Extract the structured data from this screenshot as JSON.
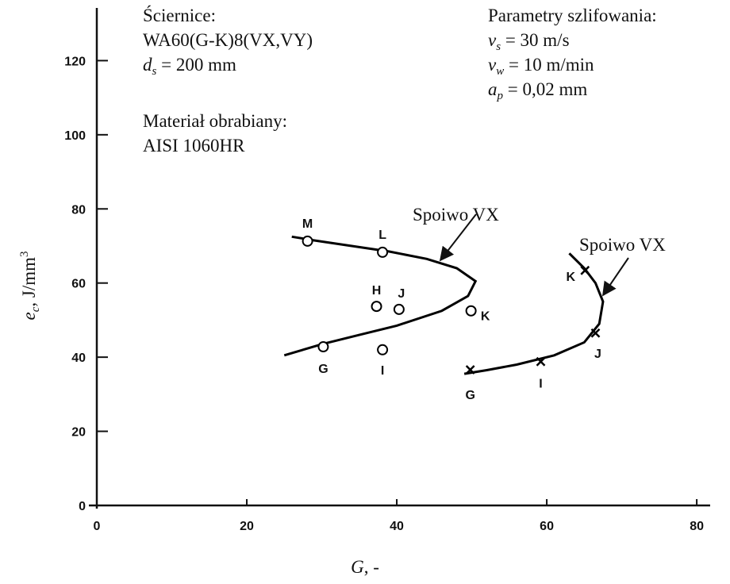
{
  "chart_data": {
    "type": "scatter",
    "xlabel": [
      {
        "t": "G",
        "style": "italic"
      },
      {
        "t": ", -",
        "style": "normal"
      }
    ],
    "ylabel": [
      {
        "t": "e",
        "style": "italic"
      },
      {
        "t": "c",
        "style": "sub"
      },
      {
        "t": ", J/mm",
        "style": "normal"
      },
      {
        "t": "3",
        "style": "sup"
      }
    ],
    "xlim": [
      0,
      82
    ],
    "ylim": [
      0,
      134
    ],
    "xticks": [
      0,
      20,
      40,
      60,
      80
    ],
    "yticks": [
      0,
      20,
      40,
      60,
      80,
      100,
      120
    ],
    "annotations_left": [
      [
        {
          "t": "Ściernice:",
          "style": "normal"
        }
      ],
      [
        {
          "t": "WA60(G-K)8(VX,VY)",
          "style": "normal"
        }
      ],
      [
        {
          "t": "d",
          "style": "italic"
        },
        {
          "t": "s",
          "style": "sub"
        },
        {
          "t": " = 200 mm",
          "style": "normal"
        }
      ],
      [
        {
          "t": "Materiał obrabiany:",
          "style": "normal"
        }
      ],
      [
        {
          "t": "AISI 1060HR",
          "style": "normal"
        }
      ]
    ],
    "annotations_right": [
      [
        {
          "t": "Parametry szlifowania:",
          "style": "normal"
        }
      ],
      [
        {
          "t": "v",
          "style": "italic"
        },
        {
          "t": "s",
          "style": "sub"
        },
        {
          "t": " = 30 m/s",
          "style": "normal"
        }
      ],
      [
        {
          "t": "v",
          "style": "italic"
        },
        {
          "t": "w",
          "style": "sub"
        },
        {
          "t": " = 10 m/min",
          "style": "normal"
        }
      ],
      [
        {
          "t": "a",
          "style": "italic"
        },
        {
          "t": "p",
          "style": "sub"
        },
        {
          "t": " = 0,02 mm",
          "style": "normal"
        }
      ]
    ],
    "series": [
      {
        "name": "Spoiwo VX",
        "marker": "circle",
        "color": "#000000",
        "labels": [
          "M",
          "L",
          "K",
          "H",
          "J",
          "I",
          "G"
        ],
        "x": [
          28.1,
          38.1,
          49.9,
          37.3,
          40.3,
          38.1,
          30.2
        ],
        "y": [
          71.3,
          68.3,
          52.5,
          53.7,
          52.9,
          42.0,
          42.8
        ],
        "curve_x": [
          26,
          29,
          34,
          39,
          44,
          48,
          50.5,
          49.5,
          46,
          40,
          35,
          30,
          25
        ],
        "curve_y": [
          72.5,
          71.5,
          70,
          68.5,
          66.5,
          64,
          60.5,
          56.5,
          52.5,
          48.5,
          46,
          43.5,
          40.5
        ]
      },
      {
        "name": "Spoiwo VX",
        "marker": "cross",
        "color": "#000000",
        "labels": [
          "K",
          "J",
          "I",
          "G"
        ],
        "x": [
          65.1,
          66.5,
          59.2,
          49.8
        ],
        "y": [
          63.4,
          46.5,
          38.8,
          36.6
        ],
        "curve_x": [
          63,
          65,
          66.5,
          67.5,
          67,
          65,
          61,
          56,
          52,
          49
        ],
        "curve_y": [
          68,
          64,
          60,
          55,
          49,
          44,
          40.5,
          38,
          36.5,
          35.5
        ]
      }
    ]
  }
}
